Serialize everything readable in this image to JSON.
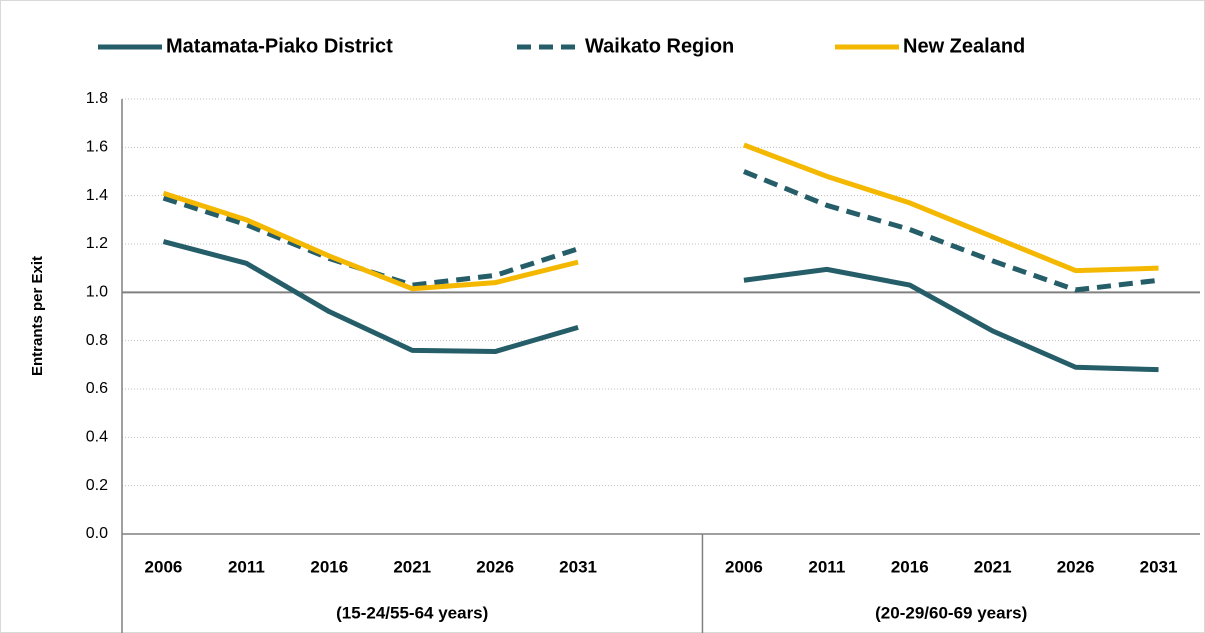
{
  "chart_data": {
    "type": "line",
    "y_label": "Entrants per Exit",
    "categories": [
      "2006",
      "2011",
      "2016",
      "2021",
      "2026",
      "2031",
      null,
      "2006",
      "2011",
      "2016",
      "2021",
      "2026",
      "2031"
    ],
    "groups": [
      {
        "label": "(15-24/55-64 years)",
        "from": 0,
        "to": 6
      },
      {
        "label": "(20-29/60-69 years)",
        "from": 7,
        "to": 12
      }
    ],
    "series": [
      {
        "name": "Matamata-Piako District",
        "color": "#255e68",
        "line_style": "solid",
        "values": [
          1.21,
          1.12,
          0.92,
          0.76,
          0.755,
          0.855,
          null,
          1.05,
          1.095,
          1.03,
          0.84,
          0.69,
          0.68
        ]
      },
      {
        "name": "Waikato Region",
        "color": "#255e68",
        "line_style": "dashed",
        "values": [
          1.39,
          1.28,
          1.14,
          1.03,
          1.07,
          1.18,
          null,
          1.5,
          1.36,
          1.26,
          1.13,
          1.01,
          1.05
        ]
      },
      {
        "name": "New Zealand",
        "color": "#f5b800",
        "line_style": "solid",
        "values": [
          1.41,
          1.3,
          1.15,
          1.015,
          1.04,
          1.125,
          null,
          1.61,
          1.48,
          1.37,
          1.23,
          1.09,
          1.1
        ]
      }
    ],
    "ylim": [
      0,
      1.8
    ],
    "yticks": [
      {
        "value": 0,
        "label": "0.0"
      },
      0.2,
      0.4,
      0.6,
      0.8,
      {
        "value": 1,
        "label": "1.0"
      },
      1.2,
      1.4,
      1.6,
      1.8
    ],
    "reference_line": {
      "value": 1,
      "color": "#808080"
    },
    "grid": true,
    "legend": "top"
  }
}
